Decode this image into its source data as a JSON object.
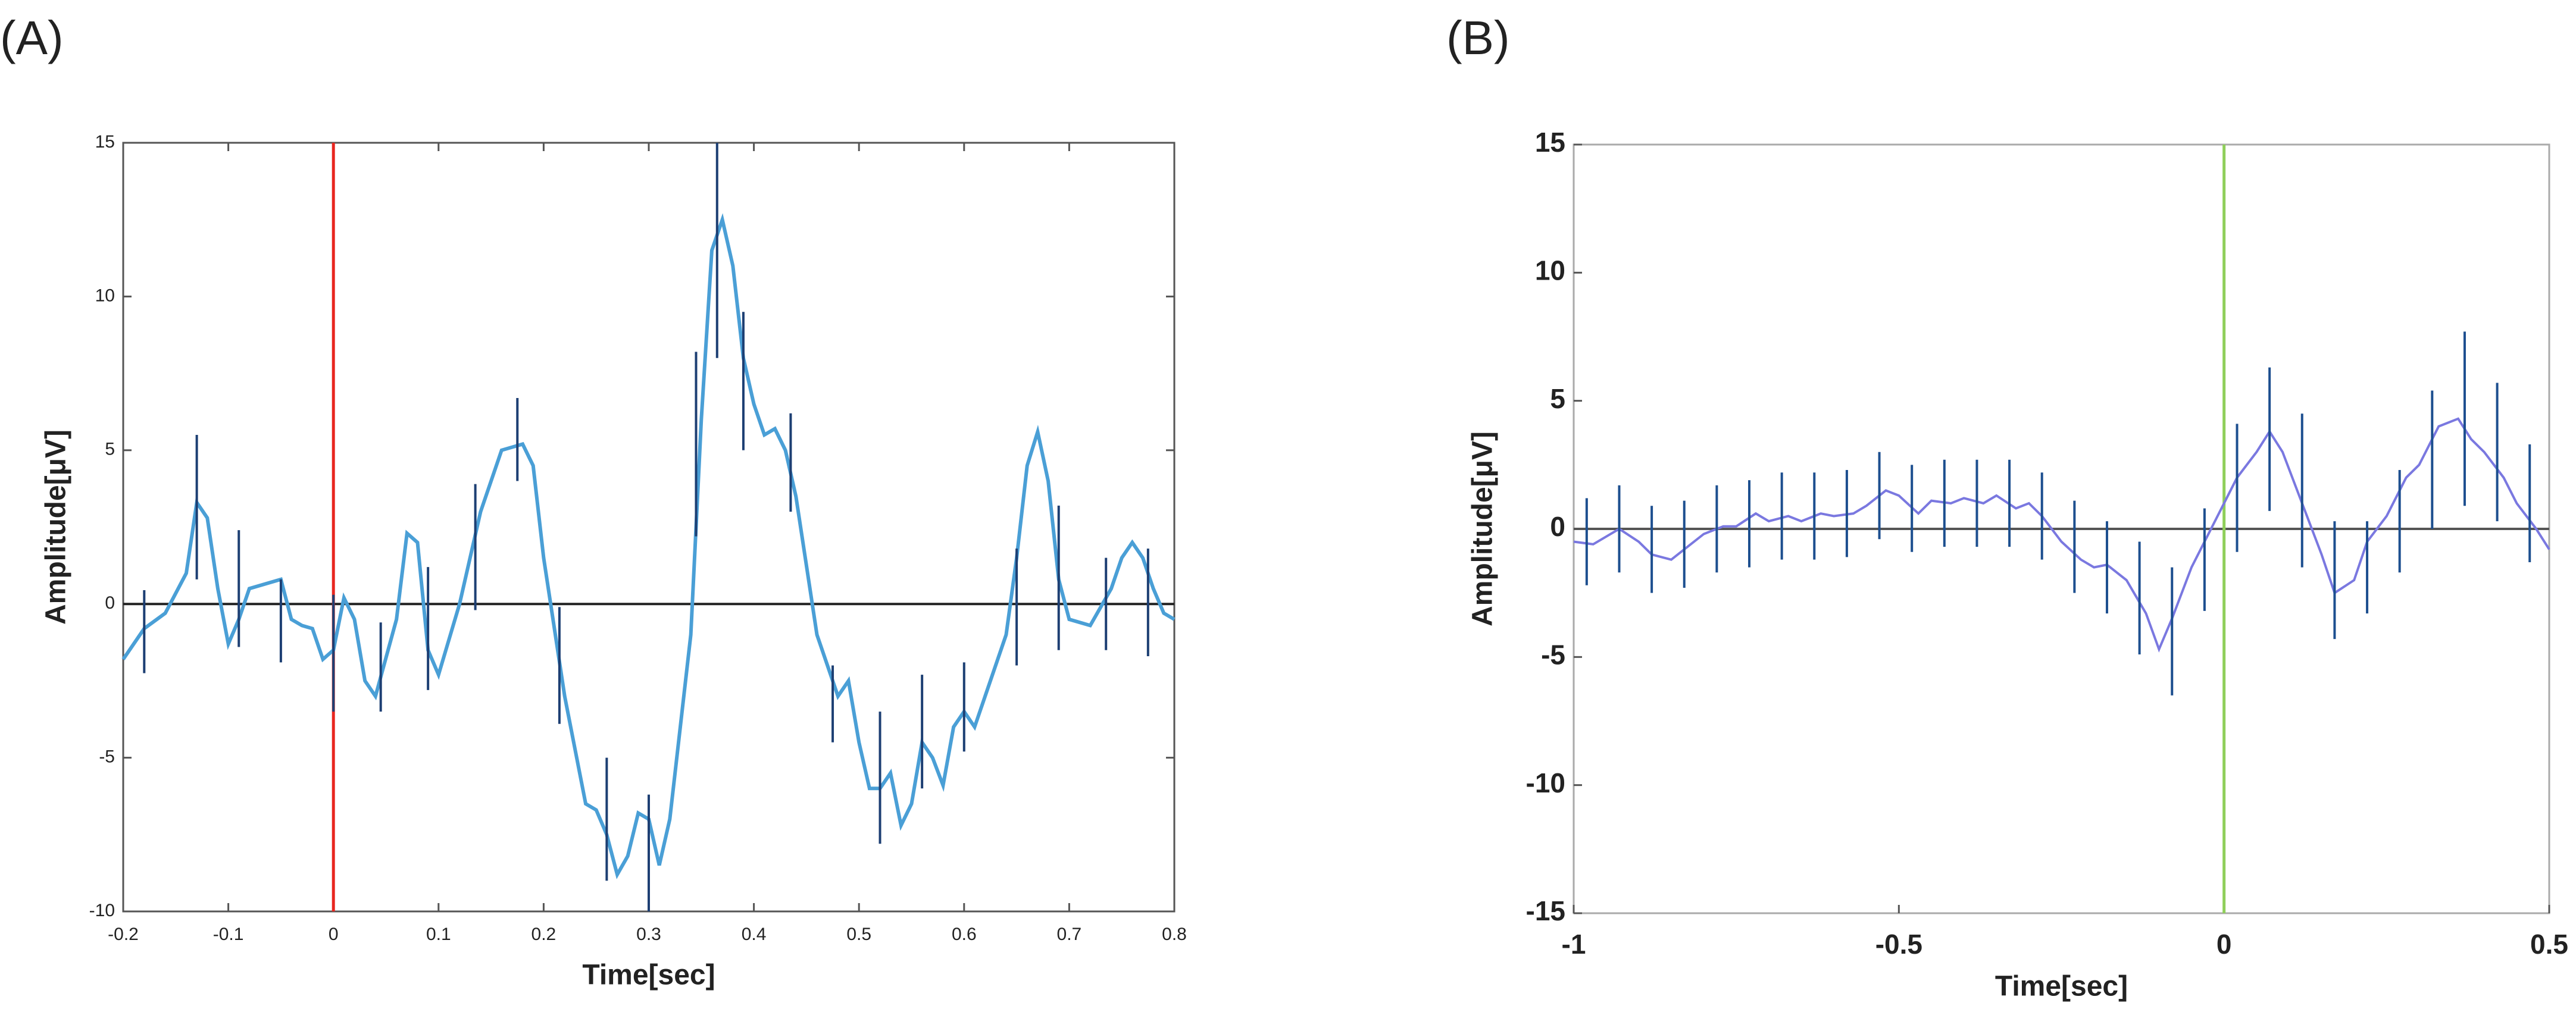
{
  "chart_data": [
    {
      "type": "line",
      "panel": "(A)",
      "x_label": "Time[sec]",
      "y_label": "Amplitude[μV]",
      "xlim": [
        -0.2,
        0.8
      ],
      "xticks": [
        -0.2,
        -0.1,
        0,
        0.1,
        0.2,
        0.3,
        0.4,
        0.5,
        0.6,
        0.7,
        0.8
      ],
      "ylim": [
        -10,
        15
      ],
      "yticks": [
        -10,
        -5,
        0,
        5,
        10,
        15
      ],
      "hline": 0,
      "hline_color": "#222",
      "vline": 0,
      "vline_color": "#e8261f",
      "series": [
        {
          "color": "#4a9fd6",
          "x": [
            -0.2,
            -0.18,
            -0.16,
            -0.14,
            -0.13,
            -0.12,
            -0.11,
            -0.1,
            -0.09,
            -0.08,
            -0.06,
            -0.05,
            -0.04,
            -0.03,
            -0.02,
            -0.01,
            0,
            0.01,
            0.02,
            0.03,
            0.04,
            0.06,
            0.07,
            0.08,
            0.09,
            0.1,
            0.12,
            0.14,
            0.16,
            0.18,
            0.19,
            0.2,
            0.22,
            0.24,
            0.25,
            0.26,
            0.27,
            0.28,
            0.29,
            0.3,
            0.31,
            0.32,
            0.34,
            0.35,
            0.36,
            0.37,
            0.38,
            0.39,
            0.4,
            0.41,
            0.42,
            0.43,
            0.44,
            0.46,
            0.48,
            0.49,
            0.5,
            0.51,
            0.52,
            0.53,
            0.54,
            0.55,
            0.56,
            0.57,
            0.58,
            0.59,
            0.6,
            0.61,
            0.62,
            0.64,
            0.65,
            0.66,
            0.67,
            0.68,
            0.69,
            0.7,
            0.72,
            0.74,
            0.75,
            0.76,
            0.77,
            0.78,
            0.79,
            0.8
          ],
          "values": [
            -1.8,
            -0.8,
            -0.3,
            1.0,
            3.3,
            2.8,
            0.5,
            -1.3,
            -0.5,
            0.5,
            0.7,
            0.8,
            -0.5,
            -0.7,
            -0.8,
            -1.8,
            -1.5,
            0.2,
            -0.5,
            -2.5,
            -3.0,
            -0.5,
            2.3,
            2.0,
            -1.5,
            -2.3,
            0.0,
            3.0,
            5.0,
            5.2,
            4.5,
            1.5,
            -3.0,
            -6.5,
            -6.7,
            -7.5,
            -8.8,
            -8.2,
            -6.8,
            -7.0,
            -8.5,
            -7.0,
            -1.0,
            6.0,
            11.5,
            12.5,
            11.0,
            8.0,
            6.5,
            5.5,
            5.7,
            5.0,
            3.5,
            -1.0,
            -3.0,
            -2.5,
            -4.5,
            -6.0,
            -6.0,
            -5.5,
            -7.2,
            -6.5,
            -4.5,
            -5.0,
            -5.9,
            -4.0,
            -3.5,
            -4.0,
            -3.0,
            -1.0,
            1.5,
            4.5,
            5.6,
            4.0,
            0.8,
            -0.5,
            -0.7,
            0.5,
            1.5,
            2.0,
            1.5,
            0.5,
            -0.3,
            -0.5
          ]
        }
      ],
      "error_bars": {
        "color": "#1d3f73",
        "x": [
          -0.18,
          -0.13,
          -0.09,
          -0.05,
          0,
          0.045,
          0.09,
          0.135,
          0.175,
          0.215,
          0.26,
          0.3,
          0.345,
          0.365,
          0.39,
          0.435,
          0.475,
          0.52,
          0.56,
          0.6,
          0.65,
          0.69,
          0.735,
          0.775
        ],
        "values": [
          -0.9,
          3.15,
          0.5,
          -0.55,
          -1.6,
          -2.05,
          -0.8,
          1.85,
          5.35,
          -2.0,
          -7.0,
          -8.1,
          5.2,
          11.5,
          7.25,
          4.6,
          -3.25,
          -5.65,
          -4.15,
          -3.35,
          -0.1,
          0.85,
          0.0,
          0.05
        ],
        "errors": [
          1.35,
          2.35,
          1.9,
          1.35,
          1.9,
          1.45,
          2.0,
          2.05,
          1.35,
          1.9,
          2.0,
          1.9,
          3.0,
          3.5,
          2.25,
          1.6,
          1.25,
          2.15,
          1.85,
          1.45,
          1.9,
          2.35,
          1.5,
          1.75
        ]
      }
    },
    {
      "type": "line",
      "panel": "(B)",
      "x_label": "Time[sec]",
      "y_label": "Amplitude[μV]",
      "xlim": [
        -1,
        0.5
      ],
      "xticks": [
        -1,
        -0.5,
        0,
        0.5
      ],
      "ylim": [
        -15,
        15
      ],
      "yticks": [
        -15,
        -10,
        -5,
        0,
        5,
        10,
        15
      ],
      "hline": 0,
      "hline_color": "#555",
      "vline": 0,
      "vline_color": "#8fcf5a",
      "series": [
        {
          "color": "#7a78e0",
          "x": [
            -1,
            -0.97,
            -0.95,
            -0.93,
            -0.9,
            -0.88,
            -0.85,
            -0.82,
            -0.8,
            -0.77,
            -0.75,
            -0.72,
            -0.7,
            -0.67,
            -0.65,
            -0.62,
            -0.6,
            -0.57,
            -0.55,
            -0.52,
            -0.5,
            -0.47,
            -0.45,
            -0.42,
            -0.4,
            -0.37,
            -0.35,
            -0.32,
            -0.3,
            -0.28,
            -0.25,
            -0.22,
            -0.2,
            -0.18,
            -0.15,
            -0.12,
            -0.1,
            -0.08,
            -0.05,
            -0.02,
            0,
            0.02,
            0.05,
            0.07,
            0.09,
            0.12,
            0.15,
            0.17,
            0.2,
            0.22,
            0.25,
            0.28,
            0.3,
            0.33,
            0.36,
            0.38,
            0.4,
            0.43,
            0.45,
            0.48,
            0.5
          ],
          "values": [
            -0.5,
            -0.6,
            -0.3,
            0.0,
            -0.5,
            -1.0,
            -1.2,
            -0.6,
            -0.2,
            0.1,
            0.1,
            0.6,
            0.3,
            0.5,
            0.3,
            0.6,
            0.5,
            0.6,
            0.9,
            1.5,
            1.3,
            0.6,
            1.1,
            1.0,
            1.2,
            1.0,
            1.3,
            0.8,
            1.0,
            0.5,
            -0.5,
            -1.2,
            -1.5,
            -1.4,
            -2.0,
            -3.3,
            -4.7,
            -3.5,
            -1.5,
            0.0,
            1.0,
            2.0,
            3.0,
            3.8,
            3.0,
            1.0,
            -1.0,
            -2.5,
            -2.0,
            -0.5,
            0.5,
            2.0,
            2.5,
            4.0,
            4.3,
            3.5,
            3.0,
            2.0,
            1.0,
            0.0,
            -0.8
          ]
        }
      ],
      "error_bars": {
        "color": "#1d4f8f",
        "x": [
          -0.98,
          -0.93,
          -0.88,
          -0.83,
          -0.78,
          -0.73,
          -0.68,
          -0.63,
          -0.58,
          -0.53,
          -0.48,
          -0.43,
          -0.38,
          -0.33,
          -0.28,
          -0.23,
          -0.18,
          -0.13,
          -0.08,
          -0.03,
          0.02,
          0.07,
          0.12,
          0.17,
          0.22,
          0.27,
          0.32,
          0.37,
          0.42,
          0.47
        ],
        "values": [
          -0.5,
          0.0,
          -0.8,
          -0.6,
          0.0,
          0.2,
          0.5,
          0.5,
          0.6,
          1.3,
          0.8,
          1.0,
          1.0,
          1.0,
          0.5,
          -0.7,
          -1.5,
          -2.7,
          -4.0,
          -1.2,
          1.6,
          3.5,
          1.5,
          -2.0,
          -1.5,
          0.3,
          2.7,
          4.3,
          3.0,
          1.0
        ],
        "errors": [
          1.7,
          1.7,
          1.7,
          1.7,
          1.7,
          1.7,
          1.7,
          1.7,
          1.7,
          1.7,
          1.7,
          1.7,
          1.7,
          1.7,
          1.7,
          1.8,
          1.8,
          2.2,
          2.5,
          2.0,
          2.5,
          2.8,
          3.0,
          2.3,
          1.8,
          2.0,
          2.7,
          3.4,
          2.7,
          2.3
        ]
      }
    }
  ]
}
